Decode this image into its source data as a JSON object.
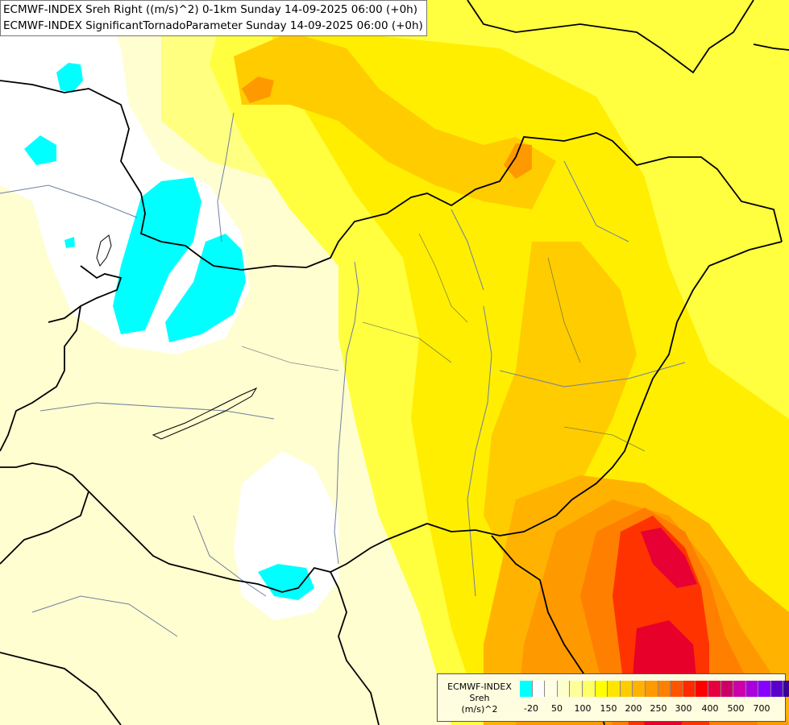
{
  "header": {
    "line1": "ECMWF-INDEX Sreh Right ((m/s)^2) 0-1km Sunday 14-09-2025 06:00 (+0h)",
    "line2": "ECMWF-INDEX SignificantTornadoParameter Sunday 14-09-2025 06:00 (+0h)"
  },
  "legend": {
    "title_lines": [
      "ECMWF-INDEX",
      "Sreh",
      "(m/s)^2"
    ],
    "colors": [
      "#00ffff",
      "#ffffff",
      "#fffee6",
      "#ffffcc",
      "#ffff99",
      "#ffff66",
      "#ffff00",
      "#ffe600",
      "#ffcc00",
      "#ffb300",
      "#ff9900",
      "#ff7f00",
      "#ff5500",
      "#ff2a00",
      "#ff0000",
      "#e60040",
      "#cc0066",
      "#cc00aa",
      "#aa00dd",
      "#8800ff",
      "#5a00cc",
      "#3a0099",
      "#1a0066"
    ],
    "tick_labels": [
      "-20",
      "50",
      "100",
      "150",
      "200",
      "250",
      "300",
      "400",
      "500",
      "700"
    ]
  }
}
